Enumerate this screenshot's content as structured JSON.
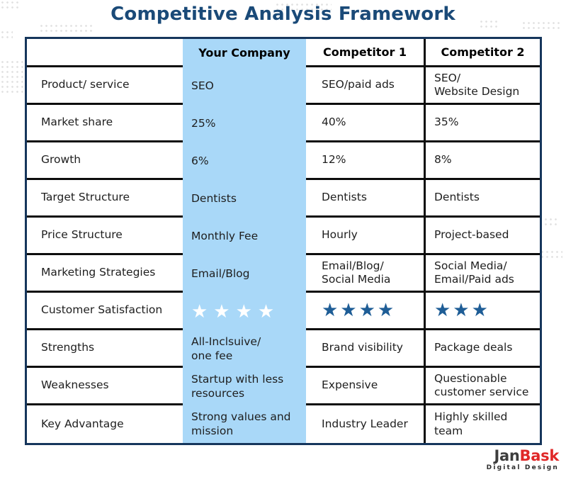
{
  "title": "Competitive Analysis Framework",
  "colors": {
    "title_navy": "#1a4a78",
    "table_border_navy": "#16365c",
    "row_line_black": "#0d0d0d",
    "highlight_blue": "#a9d8f8",
    "star_blue": "#1e5d96",
    "star_white": "#ffffff",
    "logo_red": "#e02828"
  },
  "table": {
    "header": {
      "col0": "",
      "col1": "Your Company",
      "col2": "Competitor 1",
      "col3": "Competitor 2"
    },
    "rows": [
      {
        "label": "Product/ service",
        "your_company": "SEO",
        "competitor1": "SEO/paid ads",
        "competitor2": "SEO/\nWebsite Design"
      },
      {
        "label": "Market share",
        "your_company": "25%",
        "competitor1": "40%",
        "competitor2": "35%"
      },
      {
        "label": "Growth",
        "your_company": "6%",
        "competitor1": "12%",
        "competitor2": "8%"
      },
      {
        "label": "Target Structure",
        "your_company": "Dentists",
        "competitor1": "Dentists",
        "competitor2": "Dentists"
      },
      {
        "label": "Price Structure",
        "your_company": "Monthly Fee",
        "competitor1": "Hourly",
        "competitor2": "Project-based"
      },
      {
        "label": "Marketing Strategies",
        "your_company": "Email/Blog",
        "competitor1": "Email/Blog/\nSocial Media",
        "competitor2": "Social Media/\nEmail/Paid ads"
      },
      {
        "label": "Customer Satisfaction",
        "your_company": "★★★★",
        "competitor1": "★★★★",
        "competitor2": "★★★"
      },
      {
        "label": "Strengths",
        "your_company": "All-Inclsuive/\none fee",
        "competitor1": "Brand visibility",
        "competitor2": "Package deals"
      },
      {
        "label": "Weaknesses",
        "your_company": "Startup with less\nresources",
        "competitor1": "Expensive",
        "competitor2": "Questionable\ncustomer service"
      },
      {
        "label": "Key Advantage",
        "your_company": "Strong values and\nmission",
        "competitor1": "Industry Leader",
        "competitor2": "Highly skilled\nteam"
      }
    ]
  },
  "logo": {
    "part1": "Jan",
    "part2": "Bask",
    "subtitle": "Digital  Design"
  },
  "chart_data": {
    "type": "table",
    "title": "Competitive Analysis Framework",
    "columns": [
      "",
      "Your Company",
      "Competitor 1",
      "Competitor 2"
    ],
    "rows": [
      [
        "Product/ service",
        "SEO",
        "SEO/paid ads",
        "SEO/ Website Design"
      ],
      [
        "Market share",
        "25%",
        "40%",
        "35%"
      ],
      [
        "Growth",
        "6%",
        "12%",
        "8%"
      ],
      [
        "Target Structure",
        "Dentists",
        "Dentists",
        "Dentists"
      ],
      [
        "Price Structure",
        "Monthly Fee",
        "Hourly",
        "Project-based"
      ],
      [
        "Marketing Strategies",
        "Email/Blog",
        "Email/Blog/ Social Media",
        "Social Media/ Email/Paid ads"
      ],
      [
        "Customer Satisfaction",
        "4 stars",
        "4 stars",
        "3 stars"
      ],
      [
        "Strengths",
        "All-Inclsuive/ one fee",
        "Brand visibility",
        "Package deals"
      ],
      [
        "Weaknesses",
        "Startup with less resources",
        "Expensive",
        "Questionable customer service"
      ],
      [
        "Key Advantage",
        "Strong values and mission",
        "Industry Leader",
        "Highly skilled team"
      ]
    ],
    "customer_satisfaction_stars": {
      "your_company": 4,
      "competitor1": 4,
      "competitor2": 3
    },
    "highlighted_column": "Your Company"
  }
}
